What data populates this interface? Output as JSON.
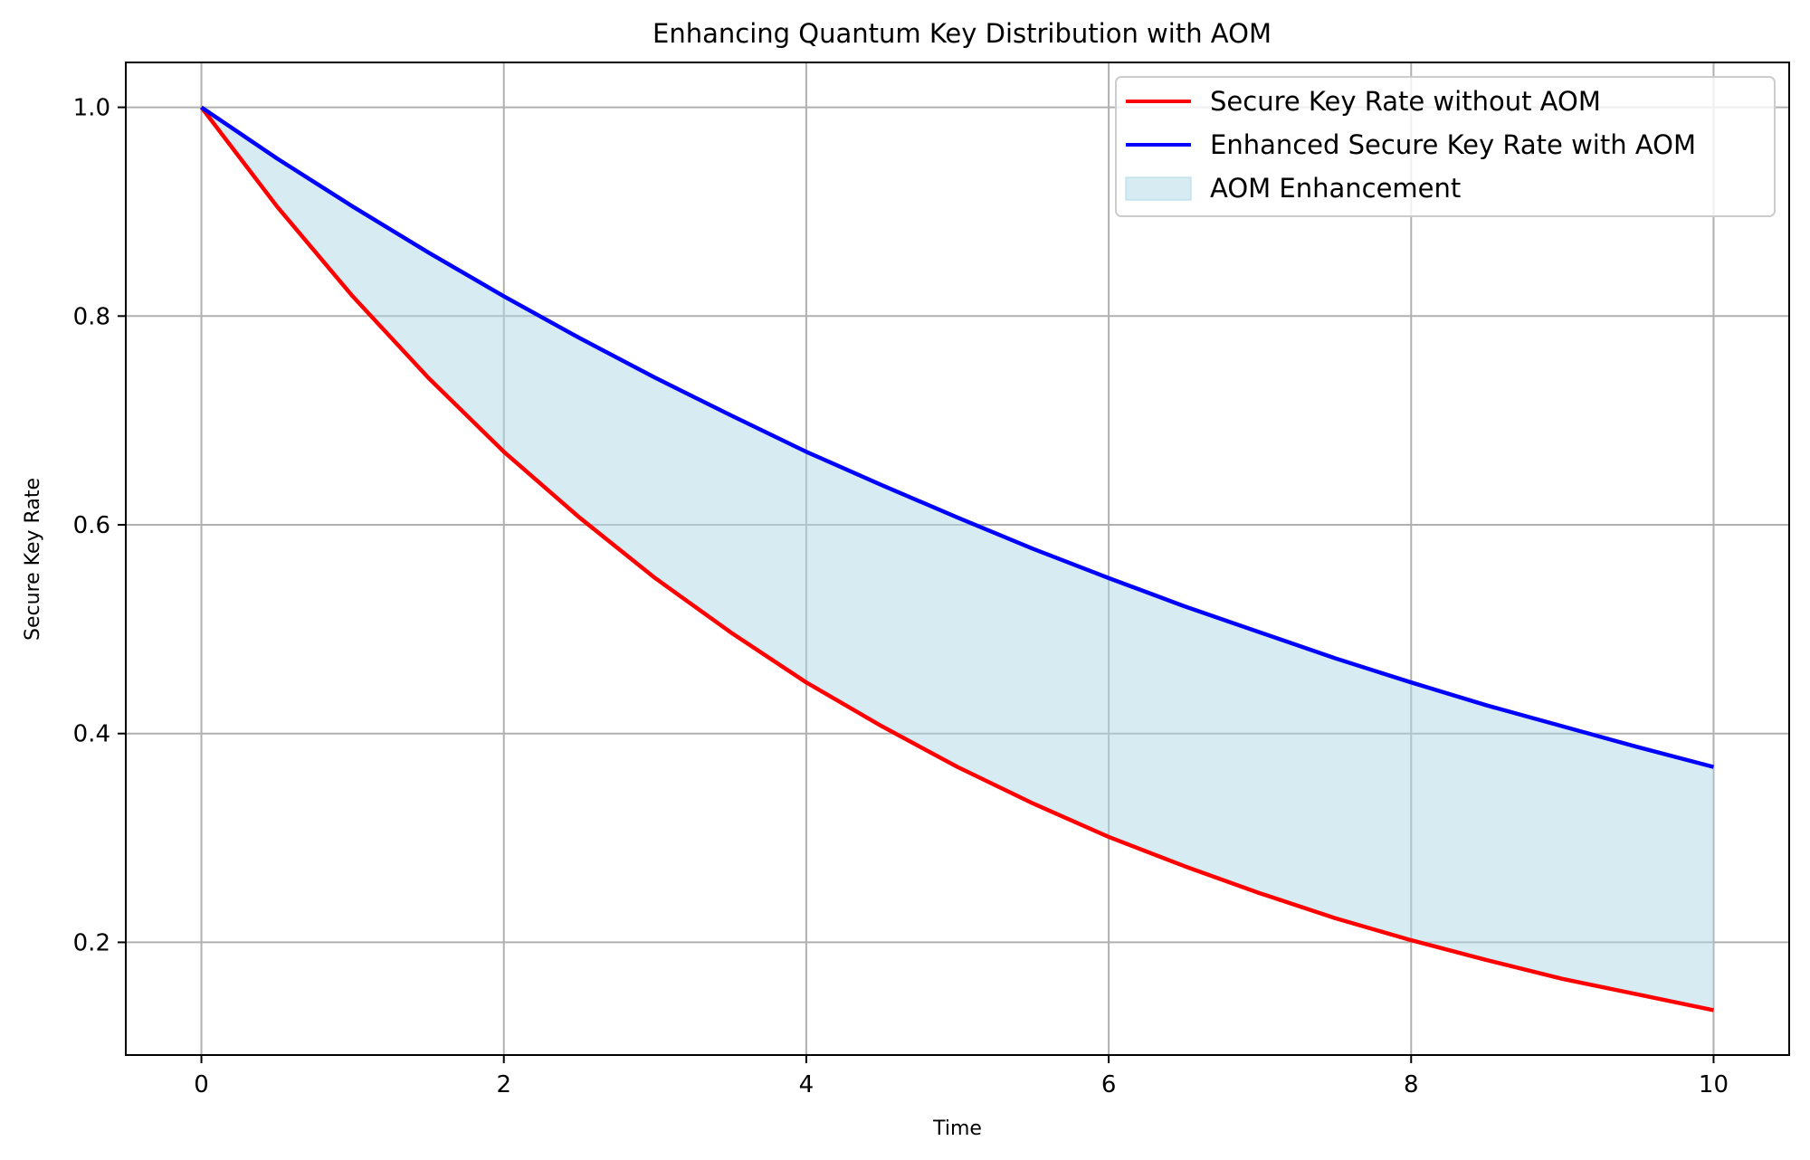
{
  "chart_data": {
    "type": "line",
    "title": "Enhancing Quantum Key Distribution with AOM",
    "xlabel": "Time",
    "ylabel": "Secure Key Rate",
    "xlim": [
      -0.5,
      10.5
    ],
    "ylim": [
      0.092,
      1.043
    ],
    "x_ticks": [
      0,
      2,
      4,
      6,
      8,
      10
    ],
    "x_tick_labels": [
      "0",
      "2",
      "4",
      "6",
      "8",
      "10"
    ],
    "y_ticks": [
      0.2,
      0.4,
      0.6,
      0.8,
      1.0
    ],
    "y_tick_labels": [
      "0.2",
      "0.4",
      "0.6",
      "0.8",
      "1.0"
    ],
    "grid": true,
    "legend_position": "top-right",
    "x": [
      0,
      0.5,
      1,
      1.5,
      2,
      2.5,
      3,
      3.5,
      4,
      4.5,
      5,
      5.5,
      6,
      6.5,
      7,
      7.5,
      8,
      8.5,
      9,
      9.5,
      10
    ],
    "series": [
      {
        "name": "Secure Key Rate without AOM",
        "color": "#ff0000",
        "values": [
          1.0,
          0.905,
          0.819,
          0.741,
          0.67,
          0.607,
          0.549,
          0.497,
          0.449,
          0.407,
          0.368,
          0.333,
          0.301,
          0.273,
          0.247,
          0.223,
          0.202,
          0.183,
          0.165,
          0.15,
          0.135
        ]
      },
      {
        "name": "Enhanced Secure Key Rate with AOM",
        "color": "#0000ff",
        "values": [
          1.0,
          0.951,
          0.905,
          0.861,
          0.819,
          0.779,
          0.741,
          0.705,
          0.67,
          0.638,
          0.607,
          0.577,
          0.549,
          0.522,
          0.497,
          0.472,
          0.449,
          0.427,
          0.407,
          0.387,
          0.368
        ]
      }
    ],
    "fill_between": {
      "name": "AOM Enhancement",
      "color": "#add8e6",
      "alpha": 0.5,
      "lower_series": 0,
      "upper_series": 1
    }
  }
}
